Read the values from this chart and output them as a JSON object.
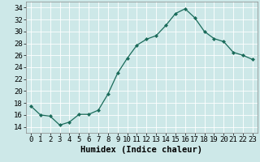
{
  "x": [
    0,
    1,
    2,
    3,
    4,
    5,
    6,
    7,
    8,
    9,
    10,
    11,
    12,
    13,
    14,
    15,
    16,
    17,
    18,
    19,
    20,
    21,
    22,
    23
  ],
  "y": [
    17.5,
    16.0,
    15.8,
    14.3,
    14.8,
    16.1,
    16.1,
    16.8,
    19.5,
    23.0,
    25.5,
    27.7,
    28.7,
    29.3,
    31.0,
    33.0,
    33.8,
    32.3,
    30.0,
    28.8,
    28.3,
    26.5,
    26.0,
    25.3
  ],
  "line_color": "#1a6b5a",
  "marker": "D",
  "marker_size": 2,
  "xlabel": "Humidex (Indice chaleur)",
  "xlim": [
    -0.5,
    23.5
  ],
  "ylim": [
    13.0,
    35.0
  ],
  "yticks": [
    14,
    16,
    18,
    20,
    22,
    24,
    26,
    28,
    30,
    32,
    34
  ],
  "xticks": [
    0,
    1,
    2,
    3,
    4,
    5,
    6,
    7,
    8,
    9,
    10,
    11,
    12,
    13,
    14,
    15,
    16,
    17,
    18,
    19,
    20,
    21,
    22,
    23
  ],
  "background_color": "#cde8e8",
  "grid_color": "#b8d8d8",
  "tick_fontsize": 6.5,
  "label_fontsize": 7.5
}
